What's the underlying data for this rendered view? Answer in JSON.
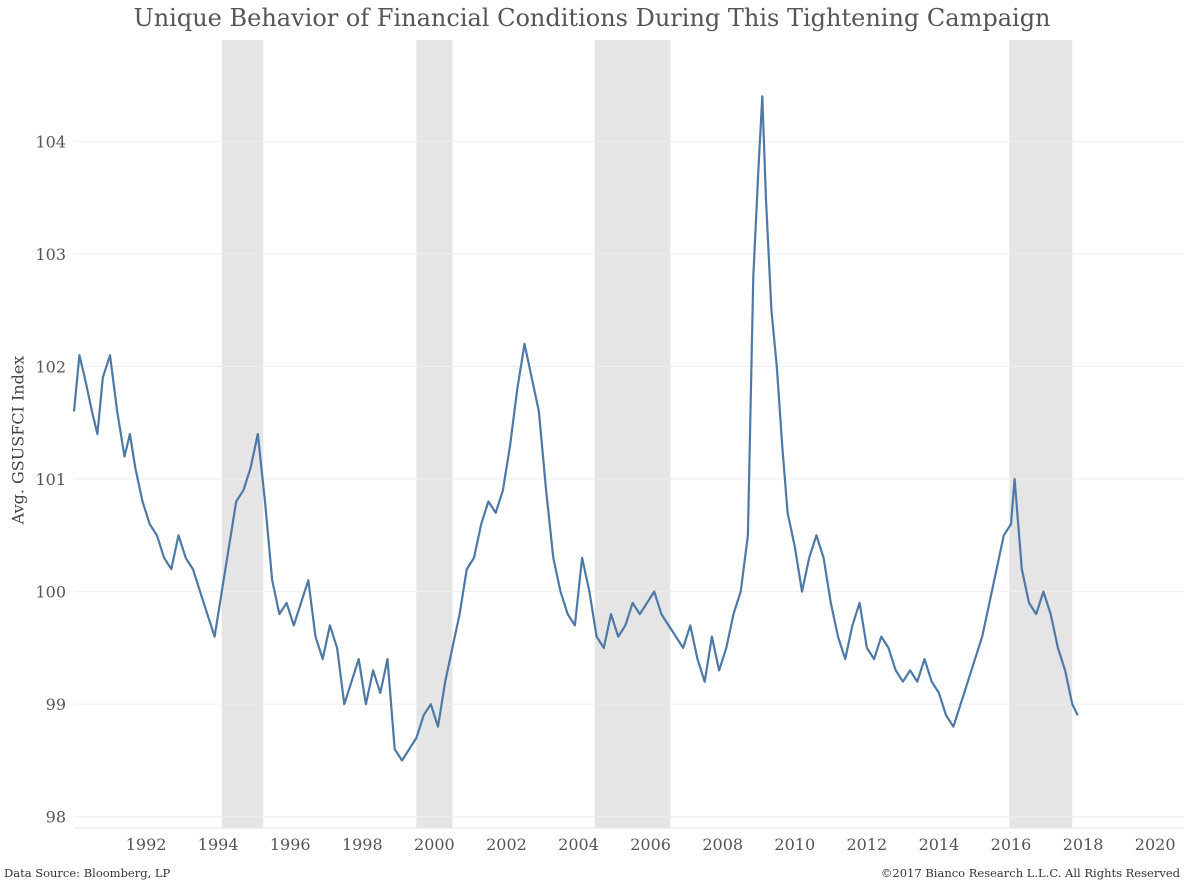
{
  "chart_data": {
    "type": "line",
    "title": "Unique Behavior of Financial Conditions During This Tightening Campaign",
    "xlabel": "",
    "ylabel": "Avg. GSUSFCI Index",
    "xlim": [
      1990.0,
      2020.8
    ],
    "ylim": [
      97.9,
      104.9
    ],
    "x_ticks": [
      1992,
      1994,
      1996,
      1998,
      2000,
      2002,
      2004,
      2006,
      2008,
      2010,
      2012,
      2014,
      2016,
      2018,
      2020
    ],
    "y_ticks": [
      98,
      99,
      100,
      101,
      102,
      103,
      104
    ],
    "grid": true,
    "legend": "none",
    "line_color": "#4e79a7",
    "shade_color": "#e5e5e5",
    "shaded_periods": [
      {
        "start": 1994.1,
        "end": 1995.25
      },
      {
        "start": 1999.5,
        "end": 2000.5
      },
      {
        "start": 2004.45,
        "end": 2006.55
      },
      {
        "start": 2015.95,
        "end": 2017.7
      }
    ],
    "series": [
      {
        "x": [
          1990.0,
          1990.15,
          1990.3,
          1990.5,
          1990.65,
          1990.8,
          1991.0,
          1991.2,
          1991.4,
          1991.55,
          1991.7,
          1991.9,
          1992.1,
          1992.3,
          1992.5,
          1992.7,
          1992.9,
          1993.1,
          1993.3,
          1993.5,
          1993.7,
          1993.9,
          1994.1,
          1994.3,
          1994.5,
          1994.7,
          1994.9,
          1995.1,
          1995.3,
          1995.5,
          1995.7,
          1995.9,
          1996.1,
          1996.3,
          1996.5,
          1996.7,
          1996.9,
          1997.1,
          1997.3,
          1997.5,
          1997.7,
          1997.9,
          1998.1,
          1998.3,
          1998.5,
          1998.7,
          1998.9,
          1999.1,
          1999.3,
          1999.5,
          1999.7,
          1999.9,
          2000.1,
          2000.3,
          2000.5,
          2000.7,
          2000.9,
          2001.1,
          2001.3,
          2001.5,
          2001.7,
          2001.9,
          2002.1,
          2002.3,
          2002.5,
          2002.7,
          2002.9,
          2003.1,
          2003.3,
          2003.5,
          2003.7,
          2003.9,
          2004.1,
          2004.3,
          2004.5,
          2004.7,
          2004.9,
          2005.1,
          2005.3,
          2005.5,
          2005.7,
          2005.9,
          2006.1,
          2006.3,
          2006.5,
          2006.7,
          2006.9,
          2007.1,
          2007.3,
          2007.5,
          2007.7,
          2007.9,
          2008.1,
          2008.3,
          2008.5,
          2008.7,
          2008.85,
          2009.0,
          2009.1,
          2009.2,
          2009.35,
          2009.5,
          2009.65,
          2009.8,
          2010.0,
          2010.2,
          2010.4,
          2010.6,
          2010.8,
          2011.0,
          2011.2,
          2011.4,
          2011.6,
          2011.8,
          2012.0,
          2012.2,
          2012.4,
          2012.6,
          2012.8,
          2013.0,
          2013.2,
          2013.4,
          2013.6,
          2013.8,
          2014.0,
          2014.2,
          2014.4,
          2014.6,
          2014.8,
          2015.0,
          2015.2,
          2015.4,
          2015.6,
          2015.8,
          2016.0,
          2016.1,
          2016.3,
          2016.5,
          2016.7,
          2016.9,
          2017.1,
          2017.3,
          2017.5,
          2017.7,
          2017.85
        ],
        "y": [
          101.6,
          102.1,
          101.9,
          101.6,
          101.4,
          101.9,
          102.1,
          101.6,
          101.2,
          101.4,
          101.1,
          100.8,
          100.6,
          100.5,
          100.3,
          100.2,
          100.5,
          100.3,
          100.2,
          100.0,
          99.8,
          99.6,
          100.0,
          100.4,
          100.8,
          100.9,
          101.1,
          101.4,
          100.8,
          100.1,
          99.8,
          99.9,
          99.7,
          99.9,
          100.1,
          99.6,
          99.4,
          99.7,
          99.5,
          99.0,
          99.2,
          99.4,
          99.0,
          99.3,
          99.1,
          99.4,
          98.6,
          98.5,
          98.6,
          98.7,
          98.9,
          99.0,
          98.8,
          99.2,
          99.5,
          99.8,
          100.2,
          100.3,
          100.6,
          100.8,
          100.7,
          100.9,
          101.3,
          101.8,
          102.2,
          101.9,
          101.6,
          100.9,
          100.3,
          100.0,
          99.8,
          99.7,
          100.3,
          100.0,
          99.6,
          99.5,
          99.8,
          99.6,
          99.7,
          99.9,
          99.8,
          99.9,
          100.0,
          99.8,
          99.7,
          99.6,
          99.5,
          99.7,
          99.4,
          99.2,
          99.6,
          99.3,
          99.5,
          99.8,
          100.0,
          100.5,
          102.8,
          103.8,
          104.4,
          103.5,
          102.5,
          102.0,
          101.3,
          100.7,
          100.4,
          100.0,
          100.3,
          100.5,
          100.3,
          99.9,
          99.6,
          99.4,
          99.7,
          99.9,
          99.5,
          99.4,
          99.6,
          99.5,
          99.3,
          99.2,
          99.3,
          99.2,
          99.4,
          99.2,
          99.1,
          98.9,
          98.8,
          99.0,
          99.2,
          99.4,
          99.6,
          99.9,
          100.2,
          100.5,
          100.6,
          101.0,
          100.2,
          99.9,
          99.8,
          100.0,
          99.8,
          99.5,
          99.3,
          99.0,
          98.9
        ]
      }
    ],
    "footer_left": "Data Source: Bloomberg, LP",
    "footer_right": "©2017 Bianco Research L.L.C.  All Rights Reserved"
  }
}
